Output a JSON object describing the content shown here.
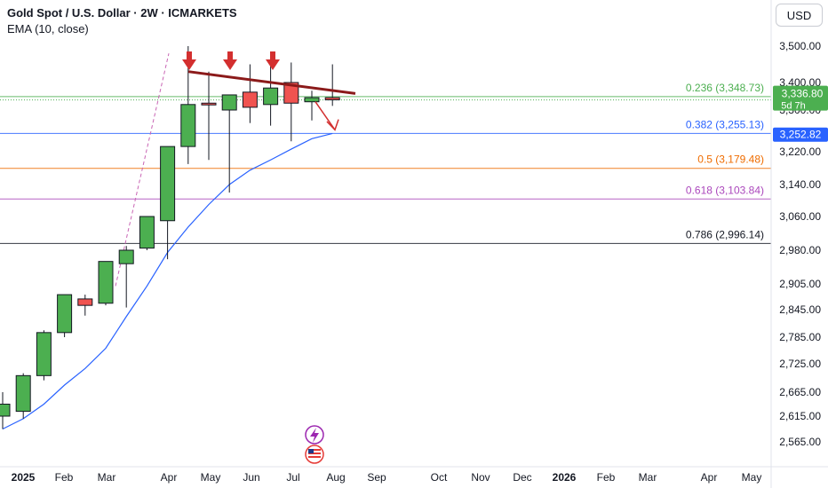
{
  "header": {
    "title": "Gold Spot / U.S. Dollar · 2W · ICMARKETS",
    "indicator": "EMA (10, close)",
    "currency": "USD"
  },
  "colors": {
    "up": "#4caf50",
    "down": "#f05350",
    "wick": "#131722",
    "ema": "#2962ff",
    "trendline": "#8b1a1a",
    "arrow": "#d32f2f"
  },
  "chart_data": {
    "type": "candlestick",
    "y_axis": {
      "min": 2520,
      "max": 3540,
      "ticks": [
        "3,500.00",
        "3,400.00",
        "3,300.00",
        "3,220.00",
        "3,140.00",
        "3,060.00",
        "2,980.00",
        "2,905.00",
        "2,845.00",
        "2,785.00",
        "2,725.00",
        "2,665.00",
        "2,615.00",
        "2,565.00"
      ],
      "tick_values": [
        3500,
        3400,
        3300,
        3220,
        3140,
        3060,
        2980,
        2905,
        2845,
        2785,
        2725,
        2665,
        2615,
        2565
      ]
    },
    "x_axis": {
      "labels": [
        "2025",
        "Feb",
        "Mar",
        "Apr",
        "May",
        "Jun",
        "Jul",
        "Aug",
        "Sep",
        "Oct",
        "Nov",
        "Dec",
        "2026",
        "Feb",
        "Mar",
        "Apr",
        "May"
      ],
      "bold": [
        true,
        false,
        false,
        false,
        false,
        false,
        false,
        false,
        false,
        false,
        false,
        false,
        true,
        false,
        false,
        false,
        false
      ]
    },
    "candles": [
      {
        "o": 2615,
        "h": 2665,
        "l": 2590,
        "c": 2640
      },
      {
        "o": 2625,
        "h": 2705,
        "l": 2610,
        "c": 2700
      },
      {
        "o": 2700,
        "h": 2800,
        "l": 2690,
        "c": 2795
      },
      {
        "o": 2795,
        "h": 2880,
        "l": 2785,
        "c": 2880
      },
      {
        "o": 2870,
        "h": 2880,
        "l": 2832,
        "c": 2855
      },
      {
        "o": 2860,
        "h": 2955,
        "l": 2855,
        "c": 2955
      },
      {
        "o": 2950,
        "h": 2990,
        "l": 2850,
        "c": 2980
      },
      {
        "o": 2985,
        "h": 3060,
        "l": 2980,
        "c": 3060
      },
      {
        "o": 3050,
        "h": 3220,
        "l": 2960,
        "c": 3230
      },
      {
        "o": 3230,
        "h": 3500,
        "l": 3190,
        "c": 3320
      },
      {
        "o": 3325,
        "h": 3430,
        "l": 3200,
        "c": 3320
      },
      {
        "o": 3300,
        "h": 3355,
        "l": 3120,
        "c": 3355
      },
      {
        "o": 3365,
        "h": 3450,
        "l": 3275,
        "c": 3310
      },
      {
        "o": 3320,
        "h": 3450,
        "l": 3270,
        "c": 3380
      },
      {
        "o": 3400,
        "h": 3455,
        "l": 3240,
        "c": 3325
      },
      {
        "o": 3330,
        "h": 3370,
        "l": 3280,
        "c": 3345
      },
      {
        "o": 3345,
        "h": 3450,
        "l": 3315,
        "c": 3337
      }
    ],
    "ema": {
      "name": "EMA (10, close)",
      "values": [
        2590,
        2610,
        2640,
        2680,
        2715,
        2760,
        2830,
        2900,
        2975,
        3035,
        3090,
        3140,
        3175,
        3200,
        3225,
        3245,
        3255
      ]
    },
    "fib_levels": [
      {
        "ratio": "0.236",
        "value": 3348.73,
        "label": "0.236 (3,348.73)",
        "color": "#4caf50",
        "dotted": false
      },
      {
        "ratio": "0.382",
        "value": 3255.13,
        "label": "0.382 (3,255.13)",
        "color": "#2962ff",
        "dotted": false
      },
      {
        "ratio": "0.5",
        "value": 3179.48,
        "label": "0.5 (3,179.48)",
        "color": "#ef6c00",
        "dotted": false
      },
      {
        "ratio": "0.618",
        "value": 3103.84,
        "label": "0.618 (3,103.84)",
        "color": "#ab47bc",
        "dotted": false
      },
      {
        "ratio": "0.786",
        "value": 2996.14,
        "label": "0.786 (2,996.14)",
        "color": "#131722",
        "dotted": false
      }
    ],
    "current_price": {
      "value": 3336.8,
      "label": "3,336.80",
      "countdown": "5d 7h",
      "color": "#4caf50"
    },
    "ema_price": {
      "value": 3252.82,
      "label": "3,252.82",
      "color": "#2962ff"
    }
  }
}
